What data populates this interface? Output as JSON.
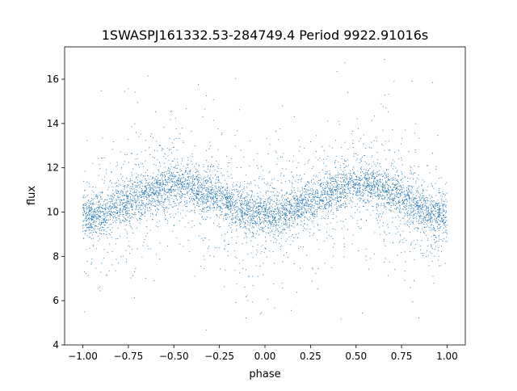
{
  "chart_data": {
    "type": "scatter",
    "title": "1SWASPJ161332.53-284749.4 Period 9922.91016s",
    "xlabel": "phase",
    "ylabel": "flux",
    "xlim": [
      -1.1,
      1.1
    ],
    "ylim": [
      4,
      17.46
    ],
    "xticks": [
      -1.0,
      -0.75,
      -0.5,
      -0.25,
      0.0,
      0.25,
      0.5,
      0.75,
      1.0
    ],
    "xtick_labels": [
      "−1.00",
      "−0.75",
      "−0.50",
      "−0.25",
      "0.00",
      "0.25",
      "0.50",
      "0.75",
      "1.00"
    ],
    "yticks": [
      4,
      6,
      8,
      10,
      12,
      14,
      16
    ],
    "ytick_labels": [
      "4",
      "6",
      "8",
      "10",
      "12",
      "14",
      "16"
    ],
    "grid": false,
    "color": "#1f77b4",
    "note_binned_median": {
      "phase": [
        -1.0,
        -0.9,
        -0.8,
        -0.7,
        -0.6,
        -0.5,
        -0.4,
        -0.3,
        -0.2,
        -0.1,
        0.0,
        0.1,
        0.2,
        0.3,
        0.4,
        0.5,
        0.6,
        0.7,
        0.8,
        0.9,
        1.0
      ],
      "flux": [
        9.8,
        9.9,
        10.3,
        10.7,
        11.0,
        11.2,
        11.1,
        10.8,
        10.4,
        10.0,
        9.8,
        9.9,
        10.3,
        10.7,
        11.0,
        11.2,
        11.1,
        10.8,
        10.4,
        10.0,
        9.8
      ]
    },
    "scatter_spread": {
      "core_sigma": 0.45,
      "outlier_range": [
        4.6,
        16.9
      ],
      "n_points": 6000
    }
  }
}
